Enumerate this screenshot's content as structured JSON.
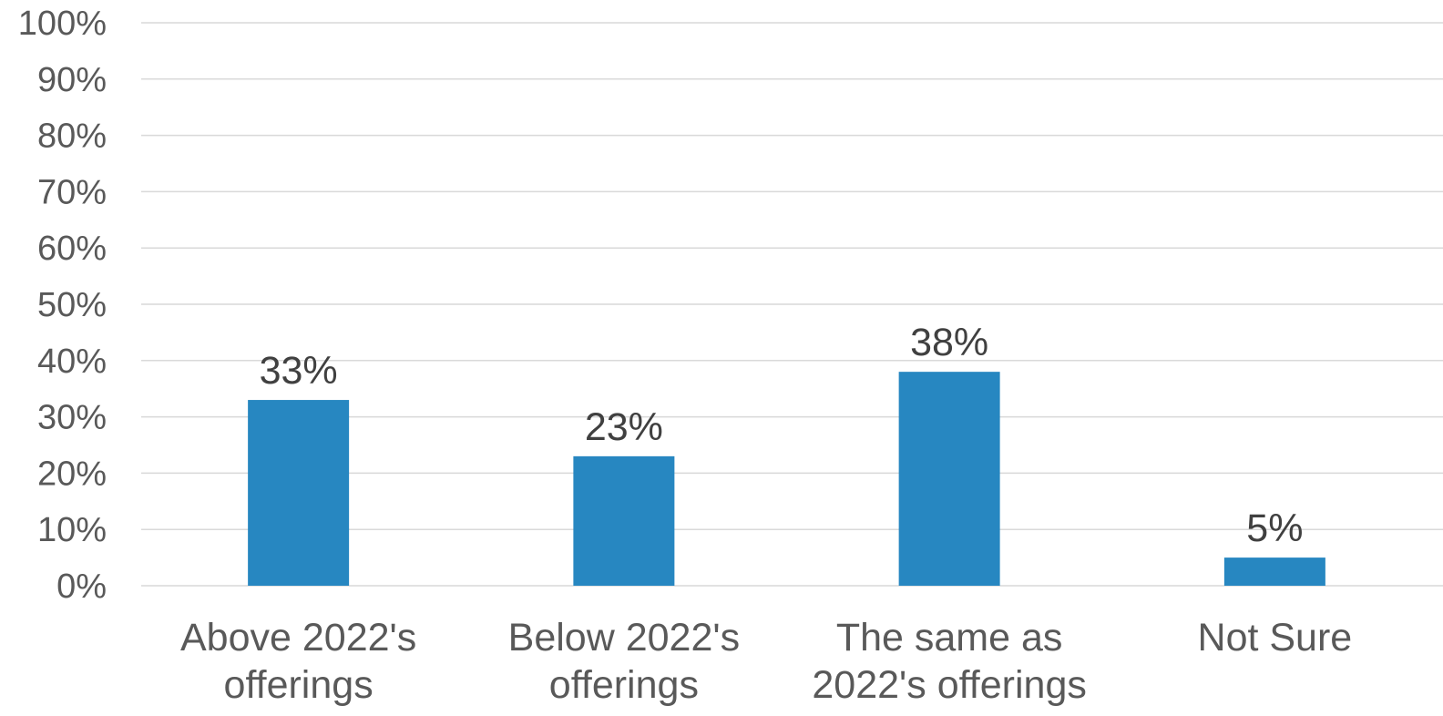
{
  "chart_data": {
    "type": "bar",
    "categories": [
      [
        "Above 2022's",
        "offerings"
      ],
      [
        "Below 2022's",
        "offerings"
      ],
      [
        "The same as",
        "2022's offerings"
      ],
      [
        "Not Sure"
      ]
    ],
    "values": [
      33,
      23,
      38,
      5
    ],
    "value_labels": [
      "33%",
      "23%",
      "38%",
      "5%"
    ],
    "y_ticks": [
      "0%",
      "10%",
      "20%",
      "30%",
      "40%",
      "50%",
      "60%",
      "70%",
      "80%",
      "90%",
      "100%"
    ],
    "ylim": [
      0,
      100
    ],
    "grid": true,
    "bar_color": "#2787c1"
  }
}
